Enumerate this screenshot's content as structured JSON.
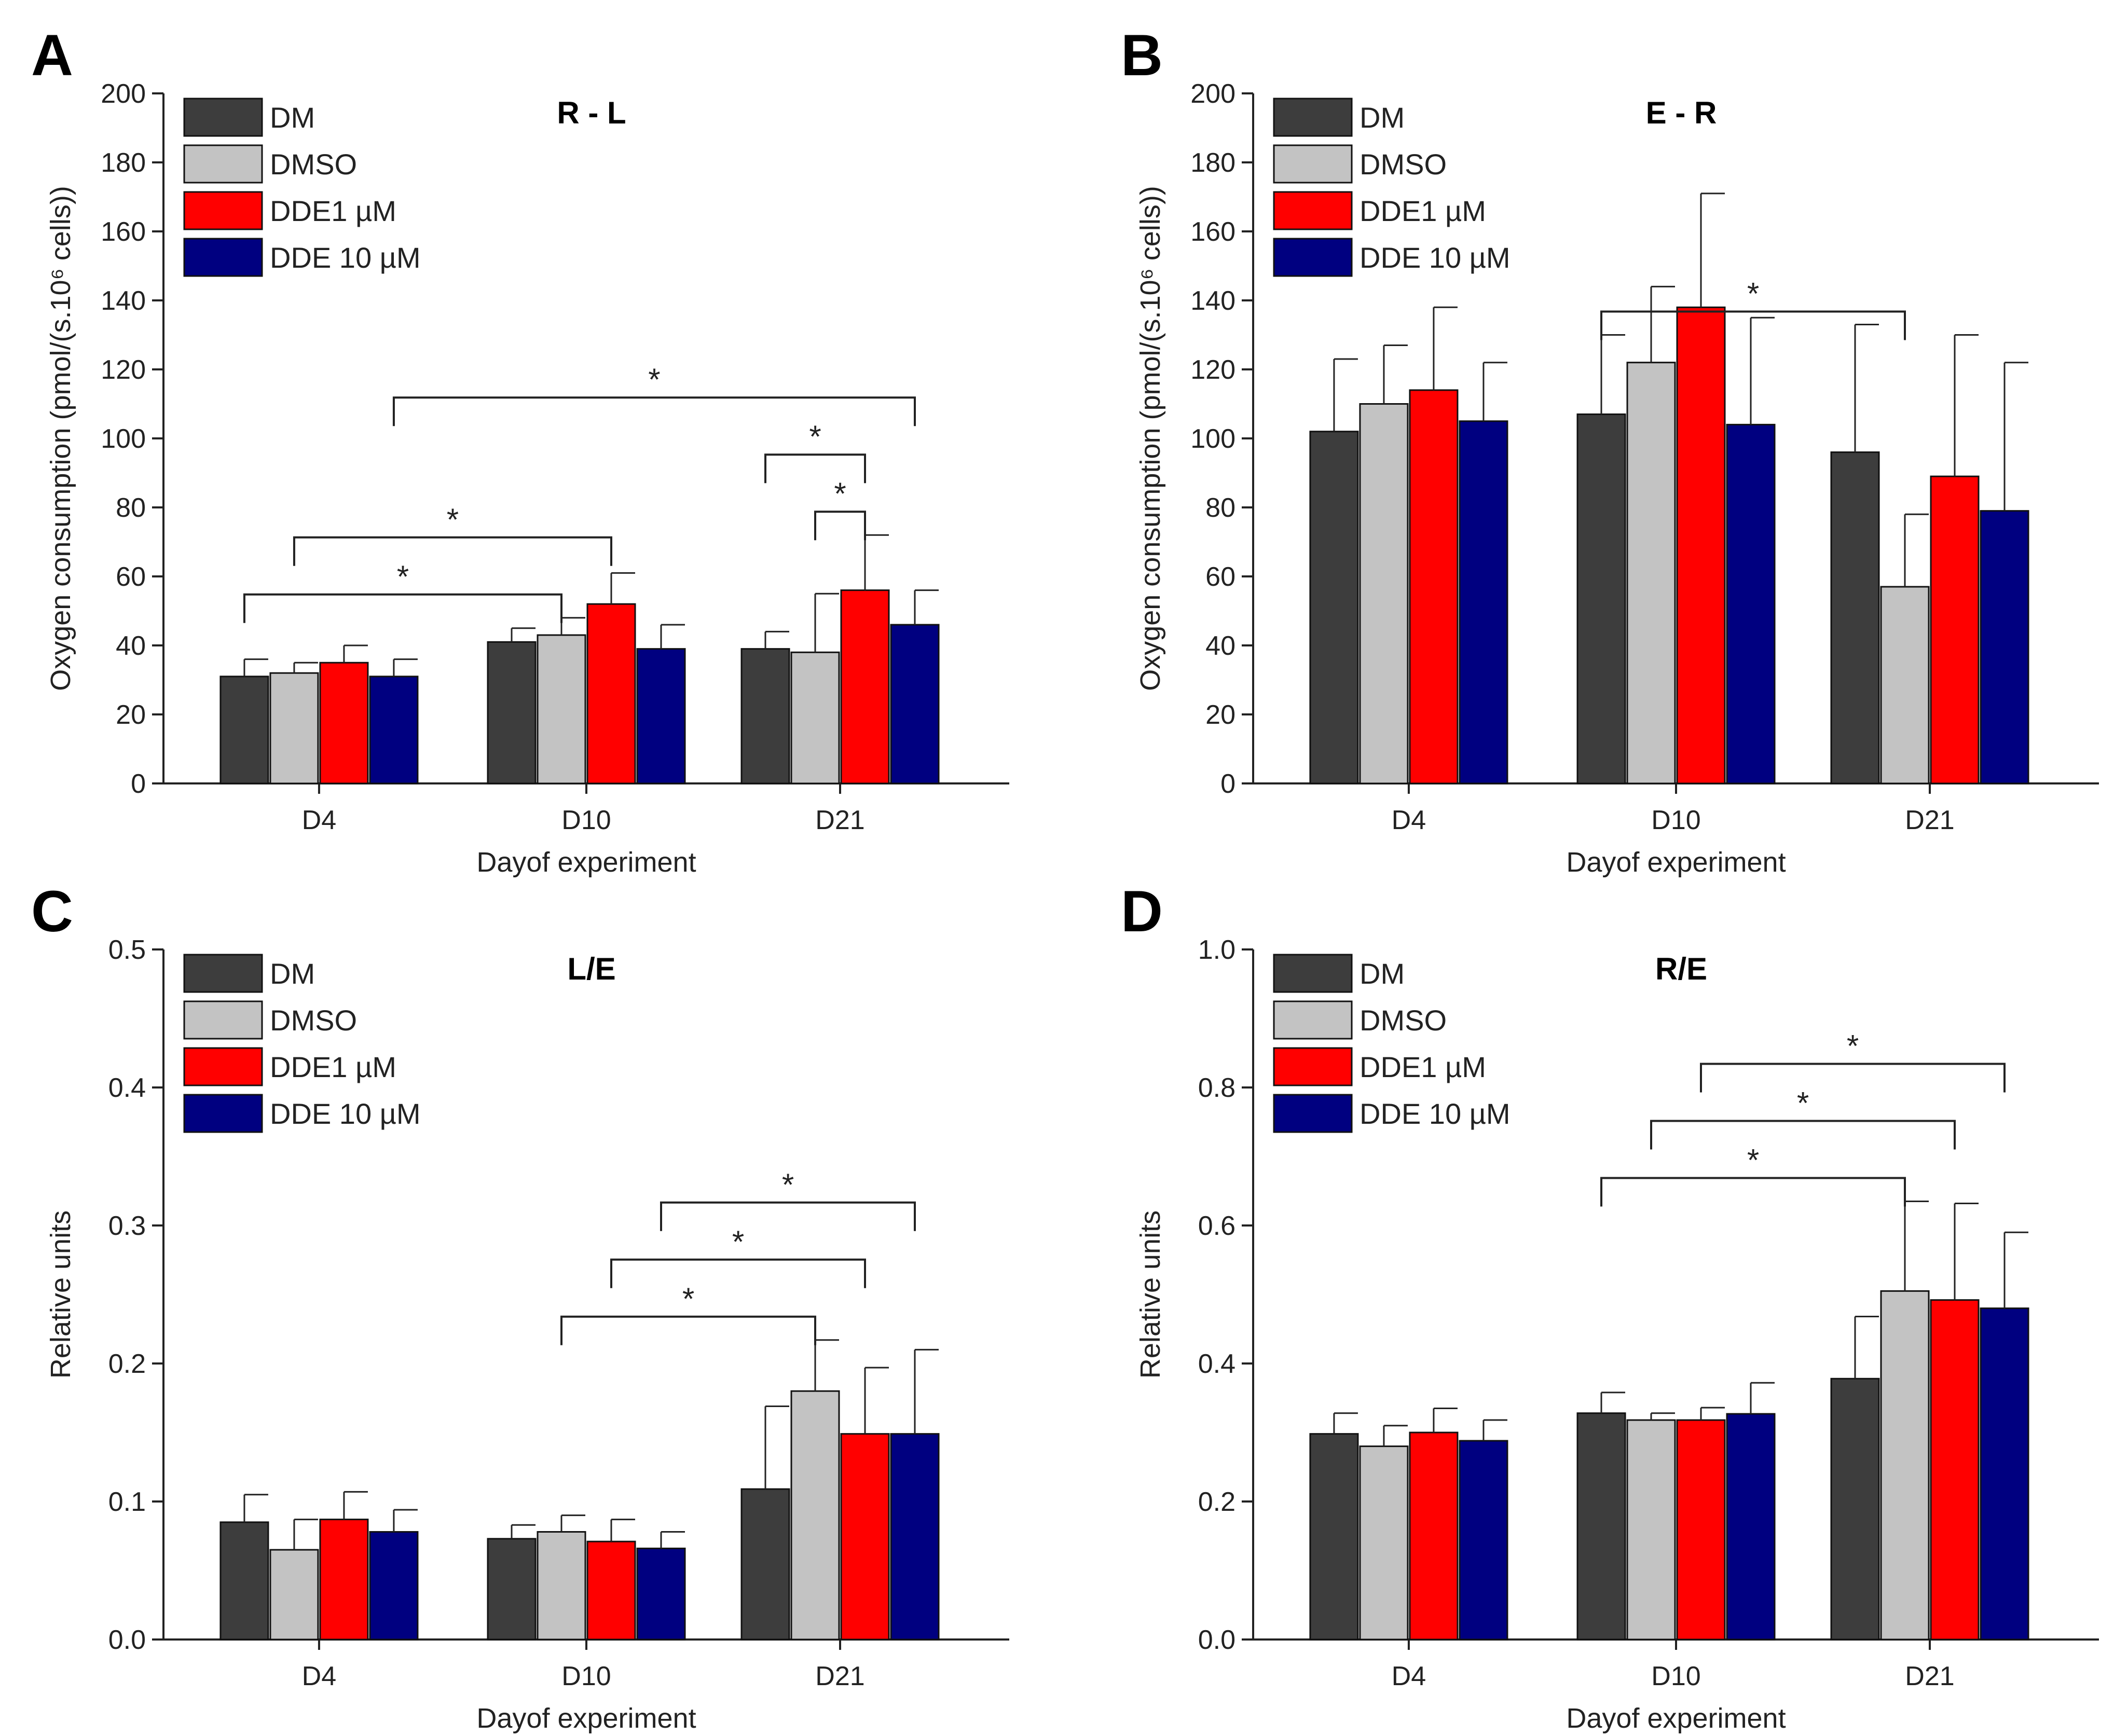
{
  "colors": {
    "DM": "#3d3d3d",
    "DMSO": "#c3c3c3",
    "DDE1 µM": "#ff0000",
    "DDE 10 µM": "#000080"
  },
  "chart_data": [
    {
      "panel": "A",
      "type": "bar",
      "title": "R - L",
      "xlabel": "Dayof experiment",
      "ylabel": "Oxygen consumption (pmol/(s.10⁶ cells))",
      "ylim": [
        0,
        200
      ],
      "yticks": [
        0,
        20,
        40,
        60,
        80,
        100,
        120,
        140,
        160,
        180,
        200
      ],
      "ytick_labels": [
        "0",
        "20",
        "40",
        "60",
        "80",
        "100",
        "120",
        "140",
        "160",
        "180",
        "200"
      ],
      "categories": [
        "D4",
        "D10",
        "D21"
      ],
      "legend_position": "top-left",
      "series": [
        {
          "name": "DM",
          "values": [
            31,
            41,
            39
          ],
          "errors": [
            5,
            4,
            5
          ]
        },
        {
          "name": "DMSO",
          "values": [
            32,
            43,
            38
          ],
          "errors": [
            3,
            5,
            17
          ]
        },
        {
          "name": "DDE1 µM",
          "values": [
            35,
            52,
            56
          ],
          "errors": [
            5,
            9,
            16
          ]
        },
        {
          "name": "DDE 10 µM",
          "values": [
            31,
            39,
            46
          ],
          "errors": [
            5,
            7,
            10
          ]
        }
      ],
      "significance": [
        {
          "from": [
            0,
            0
          ],
          "to": [
            1,
            1
          ],
          "label": "*"
        },
        {
          "from": [
            0,
            1
          ],
          "to": [
            1,
            2
          ],
          "label": "*"
        },
        {
          "from": [
            0,
            3
          ],
          "to": [
            2,
            3
          ],
          "label": "*"
        },
        {
          "from": [
            2,
            0
          ],
          "to": [
            2,
            2
          ],
          "label": "*"
        },
        {
          "from": [
            2,
            1
          ],
          "to": [
            2,
            2
          ],
          "label": "*"
        }
      ]
    },
    {
      "panel": "B",
      "type": "bar",
      "title": "E - R",
      "xlabel": "Dayof experiment",
      "ylabel": "Oxygen consumption (pmol/(s.10⁶ cells))",
      "ylim": [
        0,
        200
      ],
      "yticks": [
        0,
        20,
        40,
        60,
        80,
        100,
        120,
        140,
        160,
        180,
        200
      ],
      "ytick_labels": [
        "0",
        "20",
        "40",
        "60",
        "80",
        "100",
        "120",
        "140",
        "160",
        "180",
        "200"
      ],
      "categories": [
        "D4",
        "D10",
        "D21"
      ],
      "legend_position": "top-left",
      "series": [
        {
          "name": "DM",
          "values": [
            102,
            107,
            96
          ],
          "errors": [
            21,
            23,
            37
          ]
        },
        {
          "name": "DMSO",
          "values": [
            110,
            122,
            57
          ],
          "errors": [
            17,
            22,
            21
          ]
        },
        {
          "name": "DDE1 µM",
          "values": [
            114,
            138,
            89
          ],
          "errors": [
            24,
            33,
            41
          ]
        },
        {
          "name": "DDE 10 µM",
          "values": [
            105,
            104,
            79
          ],
          "errors": [
            17,
            31,
            43
          ]
        }
      ],
      "significance": [
        {
          "from": [
            1,
            0
          ],
          "to": [
            2,
            1
          ],
          "label": "*"
        }
      ]
    },
    {
      "panel": "C",
      "type": "bar",
      "title": "L/E",
      "xlabel": "Dayof experiment",
      "ylabel": "Relative units",
      "ylim": [
        0,
        0.5
      ],
      "yticks": [
        0,
        0.1,
        0.2,
        0.3,
        0.4,
        0.5
      ],
      "ytick_labels": [
        "0.0",
        "0.1",
        "0.2",
        "0.3",
        "0.4",
        "0.5"
      ],
      "categories": [
        "D4",
        "D10",
        "D21"
      ],
      "legend_position": "top-left",
      "series": [
        {
          "name": "DM",
          "values": [
            0.085,
            0.073,
            0.109
          ],
          "errors": [
            0.02,
            0.01,
            0.06
          ]
        },
        {
          "name": "DMSO",
          "values": [
            0.065,
            0.078,
            0.18
          ],
          "errors": [
            0.022,
            0.012,
            0.037
          ]
        },
        {
          "name": "DDE1 µM",
          "values": [
            0.087,
            0.071,
            0.149
          ],
          "errors": [
            0.02,
            0.016,
            0.048
          ]
        },
        {
          "name": "DDE 10 µM",
          "values": [
            0.078,
            0.066,
            0.149
          ],
          "errors": [
            0.016,
            0.012,
            0.061
          ]
        }
      ],
      "significance": [
        {
          "from": [
            1,
            1
          ],
          "to": [
            2,
            1
          ],
          "label": "*"
        },
        {
          "from": [
            1,
            2
          ],
          "to": [
            2,
            2
          ],
          "label": "*"
        },
        {
          "from": [
            1,
            3
          ],
          "to": [
            2,
            3
          ],
          "label": "*"
        }
      ]
    },
    {
      "panel": "D",
      "type": "bar",
      "title": "R/E",
      "xlabel": "Dayof experiment",
      "ylabel": "Relative units",
      "ylim": [
        0,
        1.0
      ],
      "yticks": [
        0,
        0.2,
        0.4,
        0.6,
        0.8,
        1.0
      ],
      "ytick_labels": [
        "0.0",
        "0.2",
        "0.4",
        "0.6",
        "0.8",
        "1.0"
      ],
      "categories": [
        "D4",
        "D10",
        "D21"
      ],
      "legend_position": "top-left",
      "series": [
        {
          "name": "DM",
          "values": [
            0.298,
            0.328,
            0.378
          ],
          "errors": [
            0.03,
            0.03,
            0.09
          ]
        },
        {
          "name": "DMSO",
          "values": [
            0.28,
            0.318,
            0.505
          ],
          "errors": [
            0.03,
            0.01,
            0.13
          ]
        },
        {
          "name": "DDE1 µM",
          "values": [
            0.3,
            0.318,
            0.492
          ],
          "errors": [
            0.035,
            0.018,
            0.14
          ]
        },
        {
          "name": "DDE 10 µM",
          "values": [
            0.288,
            0.327,
            0.48
          ],
          "errors": [
            0.03,
            0.045,
            0.11
          ]
        }
      ],
      "significance": [
        {
          "from": [
            1,
            0
          ],
          "to": [
            2,
            1
          ],
          "label": "*"
        },
        {
          "from": [
            1,
            1
          ],
          "to": [
            2,
            2
          ],
          "label": "*"
        },
        {
          "from": [
            1,
            2
          ],
          "to": [
            2,
            3
          ],
          "label": "*"
        }
      ]
    }
  ]
}
